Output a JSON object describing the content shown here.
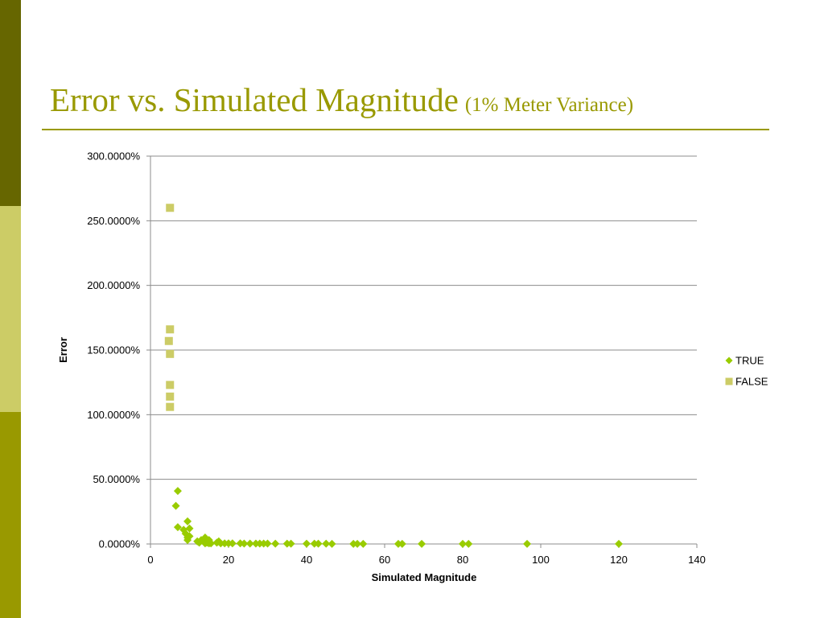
{
  "slide": {
    "title_main": "Error vs. Simulated Magnitude",
    "title_sub": "(1% Meter Variance)",
    "colors": {
      "accent_dark": "#666600",
      "accent_light": "#cccc66",
      "accent_mid": "#999900"
    }
  },
  "chart_data": {
    "type": "scatter",
    "title": "",
    "xlabel": "Simulated Magnitude",
    "ylabel": "Error",
    "xlim": [
      0,
      140
    ],
    "ylim": [
      0,
      300
    ],
    "x_ticks": [
      0,
      20,
      40,
      60,
      80,
      100,
      120,
      140
    ],
    "x_tick_labels": [
      "0",
      "20",
      "40",
      "60",
      "80",
      "100",
      "120",
      "140"
    ],
    "y_ticks": [
      0,
      50,
      100,
      150,
      200,
      250,
      300
    ],
    "y_tick_labels": [
      "0.0000%",
      "50.0000%",
      "100.0000%",
      "150.0000%",
      "200.0000%",
      "250.0000%",
      "300.0000%"
    ],
    "grid": true,
    "legend_position": "right",
    "series": [
      {
        "name": "TRUE",
        "marker": "diamond",
        "color": "#99cc00",
        "x": [
          6.5,
          7,
          7,
          8.5,
          9,
          9.5,
          9.5,
          9.5,
          10,
          10,
          12,
          12.5,
          13,
          13.5,
          14,
          14,
          14.5,
          15,
          15,
          15.5,
          17,
          17.5,
          18,
          19,
          20,
          21,
          23,
          24,
          25.5,
          27,
          28,
          29,
          30,
          32,
          35,
          36,
          40,
          42,
          43,
          45,
          46.5,
          52,
          53,
          54.5,
          63.5,
          64.5,
          69.5,
          80,
          81.5,
          96.5,
          120
        ],
        "y": [
          29.5,
          41,
          13,
          11,
          8,
          5,
          3,
          17.5,
          12,
          6,
          2,
          1,
          3,
          2,
          5,
          0.5,
          1,
          3,
          0.5,
          0.5,
          1,
          2,
          0.5,
          0.5,
          0.5,
          0.5,
          0.5,
          0.3,
          0.3,
          0.3,
          0.3,
          0.3,
          0.3,
          0.2,
          0.2,
          0.2,
          0.2,
          0.2,
          0.2,
          0.2,
          0.1,
          0.1,
          0.1,
          0.1,
          0.1,
          0.1,
          0.1,
          0.1,
          0.1,
          0.1,
          0.1
        ]
      },
      {
        "name": "FALSE",
        "marker": "square",
        "color": "#cccc66",
        "x": [
          5,
          5,
          4.7,
          5,
          5,
          5,
          5
        ],
        "y": [
          260,
          166,
          157,
          147,
          123,
          114,
          106
        ]
      }
    ]
  }
}
